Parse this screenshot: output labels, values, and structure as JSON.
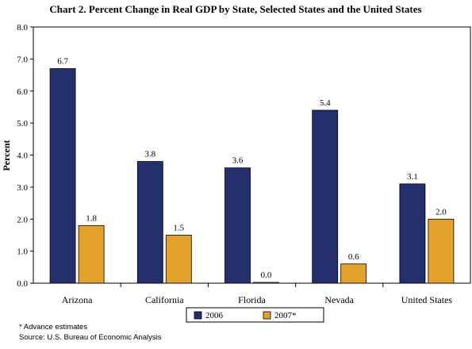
{
  "chart_data": {
    "type": "bar",
    "title": "Chart 2. Percent Change in Real GDP by State, Selected States and the United States",
    "ylabel": "Percent",
    "xlabel": "",
    "categories": [
      "Arizona",
      "California",
      "Florida",
      "Nevada",
      "United States"
    ],
    "series": [
      {
        "name": "2006",
        "values": [
          6.7,
          3.8,
          3.6,
          5.4,
          3.1
        ],
        "labels": [
          "6.7",
          "3.8",
          "3.6",
          "5.4",
          "3.1"
        ],
        "color": "#24306b"
      },
      {
        "name": "2007*",
        "values": [
          1.8,
          1.5,
          0.0,
          0.6,
          2.0
        ],
        "labels": [
          "1.8",
          "1.5",
          "0.0",
          "0.6",
          "2.0"
        ],
        "color": "#e2a22b"
      }
    ],
    "ylim": [
      0,
      8
    ],
    "yticks": [
      "0.0",
      "1.0",
      "2.0",
      "3.0",
      "4.0",
      "5.0",
      "6.0",
      "7.0",
      "8.0"
    ],
    "grid": false,
    "legend_position": "bottom-center"
  },
  "notes": {
    "advance": "* Advance estimates",
    "source": "Source: U.S. Bureau of Economic Analysis"
  }
}
